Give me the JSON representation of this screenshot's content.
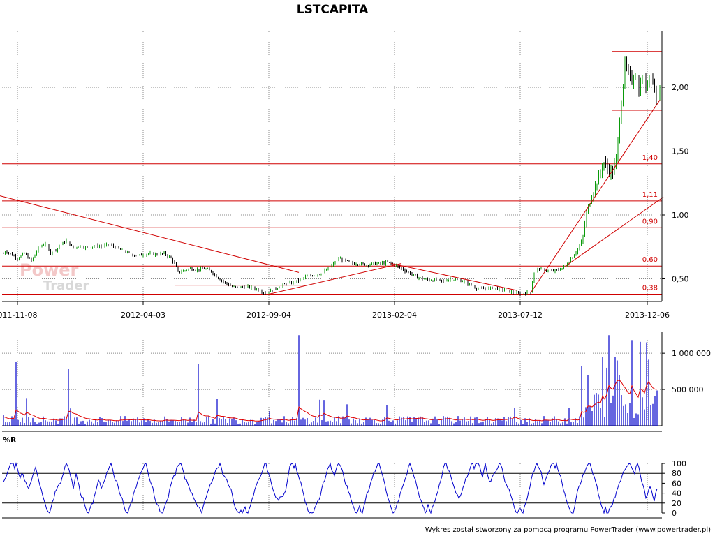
{
  "chart_data": [
    {
      "type": "candlestick",
      "title": "LSTCAPITA",
      "x_tick_labels": [
        "011-11-08",
        "2012-04-03",
        "2012-09-04",
        "2013-02-04",
        "2013-07-12",
        "2013-12-06"
      ],
      "y_tick_labels": [
        "2,00",
        "1,50",
        "1,00",
        "0,50"
      ],
      "ylim": [
        0.35,
        2.45
      ],
      "grid": true,
      "levels": [
        {
          "label": "1,40",
          "value": 1.4
        },
        {
          "label": "1,11",
          "value": 1.11
        },
        {
          "label": "0,90",
          "value": 0.9
        },
        {
          "label": "0,60",
          "value": 0.6
        },
        {
          "label": "0,38",
          "value": 0.38
        }
      ],
      "close_path": [
        [
          0,
          0.66
        ],
        [
          8,
          0.72
        ],
        [
          14,
          0.7
        ],
        [
          25,
          0.66
        ],
        [
          35,
          0.7
        ],
        [
          45,
          0.64
        ],
        [
          55,
          0.74
        ],
        [
          65,
          0.78
        ],
        [
          72,
          0.7
        ],
        [
          82,
          0.74
        ],
        [
          95,
          0.8
        ],
        [
          105,
          0.74
        ],
        [
          115,
          0.76
        ],
        [
          125,
          0.74
        ],
        [
          135,
          0.76
        ],
        [
          145,
          0.75
        ],
        [
          155,
          0.77
        ],
        [
          165,
          0.75
        ],
        [
          175,
          0.72
        ],
        [
          185,
          0.7
        ],
        [
          195,
          0.68
        ],
        [
          205,
          0.69
        ],
        [
          215,
          0.7
        ],
        [
          225,
          0.69
        ],
        [
          235,
          0.7
        ],
        [
          245,
          0.66
        ],
        [
          250,
          0.62
        ],
        [
          255,
          0.55
        ],
        [
          262,
          0.56
        ],
        [
          272,
          0.58
        ],
        [
          282,
          0.57
        ],
        [
          292,
          0.58
        ],
        [
          302,
          0.56
        ],
        [
          312,
          0.51
        ],
        [
          322,
          0.47
        ],
        [
          332,
          0.44
        ],
        [
          342,
          0.43
        ],
        [
          352,
          0.44
        ],
        [
          362,
          0.43
        ],
        [
          372,
          0.41
        ],
        [
          380,
          0.39
        ],
        [
          390,
          0.41
        ],
        [
          400,
          0.44
        ],
        [
          410,
          0.46
        ],
        [
          420,
          0.47
        ],
        [
          428,
          0.49
        ],
        [
          440,
          0.52
        ],
        [
          450,
          0.53
        ],
        [
          460,
          0.54
        ],
        [
          470,
          0.58
        ],
        [
          478,
          0.62
        ],
        [
          485,
          0.66
        ],
        [
          495,
          0.64
        ],
        [
          505,
          0.62
        ],
        [
          515,
          0.62
        ],
        [
          525,
          0.61
        ],
        [
          535,
          0.62
        ],
        [
          545,
          0.62
        ],
        [
          555,
          0.63
        ],
        [
          565,
          0.61
        ],
        [
          575,
          0.58
        ],
        [
          585,
          0.55
        ],
        [
          595,
          0.52
        ],
        [
          605,
          0.5
        ],
        [
          615,
          0.49
        ],
        [
          625,
          0.49
        ],
        [
          635,
          0.48
        ],
        [
          645,
          0.5
        ],
        [
          655,
          0.49
        ],
        [
          665,
          0.48
        ],
        [
          675,
          0.45
        ],
        [
          685,
          0.42
        ],
        [
          695,
          0.42
        ],
        [
          705,
          0.43
        ],
        [
          715,
          0.42
        ],
        [
          725,
          0.41
        ],
        [
          735,
          0.39
        ],
        [
          745,
          0.38
        ],
        [
          752,
          0.39
        ],
        [
          760,
          0.4
        ],
        [
          765,
          0.55
        ],
        [
          772,
          0.58
        ],
        [
          780,
          0.57
        ],
        [
          790,
          0.56
        ],
        [
          800,
          0.57
        ],
        [
          810,
          0.6
        ],
        [
          818,
          0.66
        ],
        [
          826,
          0.72
        ],
        [
          834,
          0.8
        ],
        [
          840,
          1.02
        ],
        [
          846,
          1.12
        ],
        [
          852,
          1.22
        ],
        [
          858,
          1.3
        ],
        [
          864,
          1.42
        ],
        [
          870,
          1.36
        ],
        [
          878,
          1.33
        ],
        [
          883,
          1.45
        ],
        [
          887,
          1.72
        ],
        [
          891,
          1.95
        ],
        [
          895,
          2.18
        ],
        [
          900,
          2.1
        ],
        [
          905,
          2.05
        ],
        [
          910,
          2.12
        ],
        [
          915,
          1.97
        ],
        [
          920,
          2.08
        ],
        [
          925,
          2.0
        ],
        [
          930,
          2.12
        ],
        [
          935,
          2.05
        ],
        [
          940,
          1.92
        ],
        [
          945,
          1.98
        ]
      ],
      "trendlines": [
        {
          "from": [
            0,
            1.15
          ],
          "to": [
            428,
            0.55
          ]
        },
        {
          "from": [
            385,
            0.38
          ],
          "to": [
            575,
            0.62
          ]
        },
        {
          "from": [
            560,
            0.62
          ],
          "to": [
            740,
            0.41
          ]
        },
        {
          "from": [
            760,
            0.39
          ],
          "to": [
            945,
            1.9
          ]
        },
        {
          "from": [
            810,
            0.6
          ],
          "to": [
            950,
            1.14
          ]
        },
        {
          "from": [
            250,
            0.45
          ],
          "to": [
            440,
            0.45
          ]
        },
        {
          "from": [
            876,
            2.28
          ],
          "to": [
            948,
            2.28
          ]
        },
        {
          "from": [
            876,
            1.82
          ],
          "to": [
            948,
            1.82
          ]
        }
      ],
      "colors": {
        "up": "#0a9a0a",
        "down": "#000000",
        "trend": "#d00000",
        "grid": "#888888"
      }
    },
    {
      "type": "bar",
      "series_color": "#0000cc",
      "average_color": "#e00000",
      "y_tick_labels": [
        "1 000 000",
        "500 000"
      ],
      "ylim": [
        0,
        1300000
      ]
    },
    {
      "type": "line",
      "title": "%R",
      "y_tick_labels": [
        "100",
        "80",
        "60",
        "40",
        "20",
        "0"
      ],
      "ylim": [
        0,
        100
      ],
      "reference_levels": [
        80,
        20
      ],
      "line_color": "#0000cc"
    }
  ],
  "footer": {
    "text": "Wykres został stworzony za pomocą programu PowerTrader (www.powertrader.pl)"
  },
  "watermark": {
    "line1": "Power",
    "line2": "Trader"
  }
}
